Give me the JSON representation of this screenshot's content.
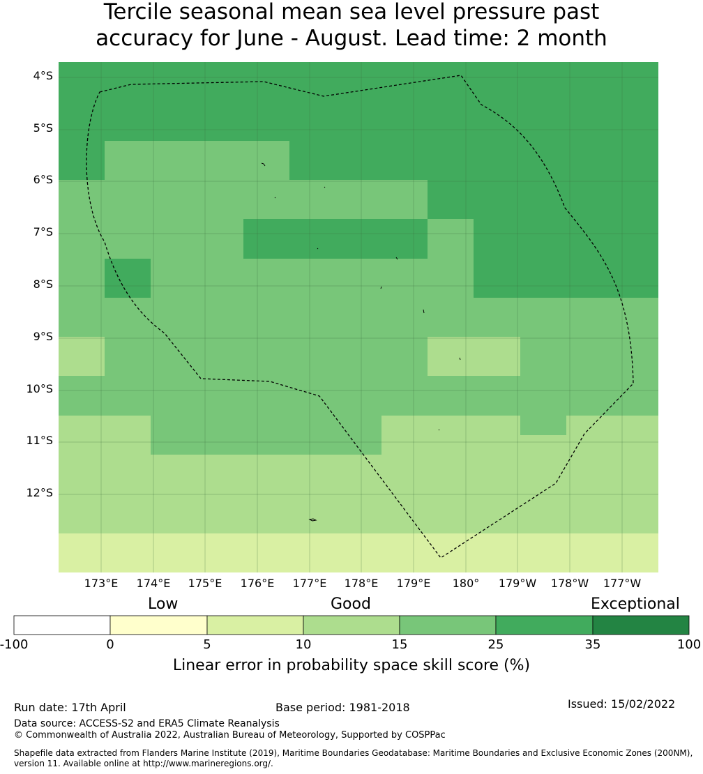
{
  "title": {
    "line1": "Tercile seasonal mean sea level pressure past",
    "line2": "accuracy for June - August. Lead time: 2 month"
  },
  "map": {
    "lat_labels": [
      "4°S",
      "5°S",
      "6°S",
      "7°S",
      "8°S",
      "9°S",
      "10°S",
      "11°S",
      "12°S"
    ],
    "lon_labels": [
      "173°E",
      "174°E",
      "175°E",
      "176°E",
      "177°E",
      "178°E",
      "179°E",
      "180°",
      "179°W",
      "178°W",
      "177°W"
    ],
    "grid_rows": [
      "5555555555555",
      "5555555555555",
      "5555555555555",
      "5555555555555",
      "5444455555555",
      "5444455555555",
      "4444444455555",
      "4444444455555",
      "4444555545555",
      "4444555545555",
      "4544444445555",
      "4544444445555",
      "4444444444444",
      "4444444444444",
      "3444444433444",
      "3444444433444",
      "4444444444444",
      "4444444444444",
      "3344444333433",
      "3344444333333",
      "3333333333333",
      "3333333333333",
      "3333333333333",
      "3333333333333",
      "2222222222222",
      "2222222222222"
    ],
    "eez_boundary": "dashed black line"
  },
  "colorbar": {
    "categories": [
      "Low",
      "Good",
      "Exceptional"
    ],
    "ticks": [
      "-100",
      "0",
      "5",
      "10",
      "15",
      "25",
      "35",
      "100"
    ],
    "colors": [
      "#ffffff",
      "#ffffcc",
      "#d9f0a3",
      "#addd8e",
      "#78c679",
      "#41ab5d",
      "#238443"
    ],
    "title": "Linear error in probability space skill score (%)"
  },
  "footer": {
    "run_date": "Run date: 17th April",
    "base_period": "Base period: 1981-2018",
    "issued": "Issued: 15/02/2022",
    "data_source": "Data source: ACCESS-S2 and ERA5 Climate Reanalysis",
    "copyright": "© Commonwealth of Australia 2022, Australian Bureau of Meteorology, Supported by COSPPac",
    "shapefile_line1": "Shapefile data extracted from Flanders Marine Institute (2019), Maritime Boundaries Geodatabase: Maritime Boundaries and Exclusive Economic Zones (200NM),",
    "shapefile_line2": "version 11. Available online at http://www.marineregions.org/."
  }
}
